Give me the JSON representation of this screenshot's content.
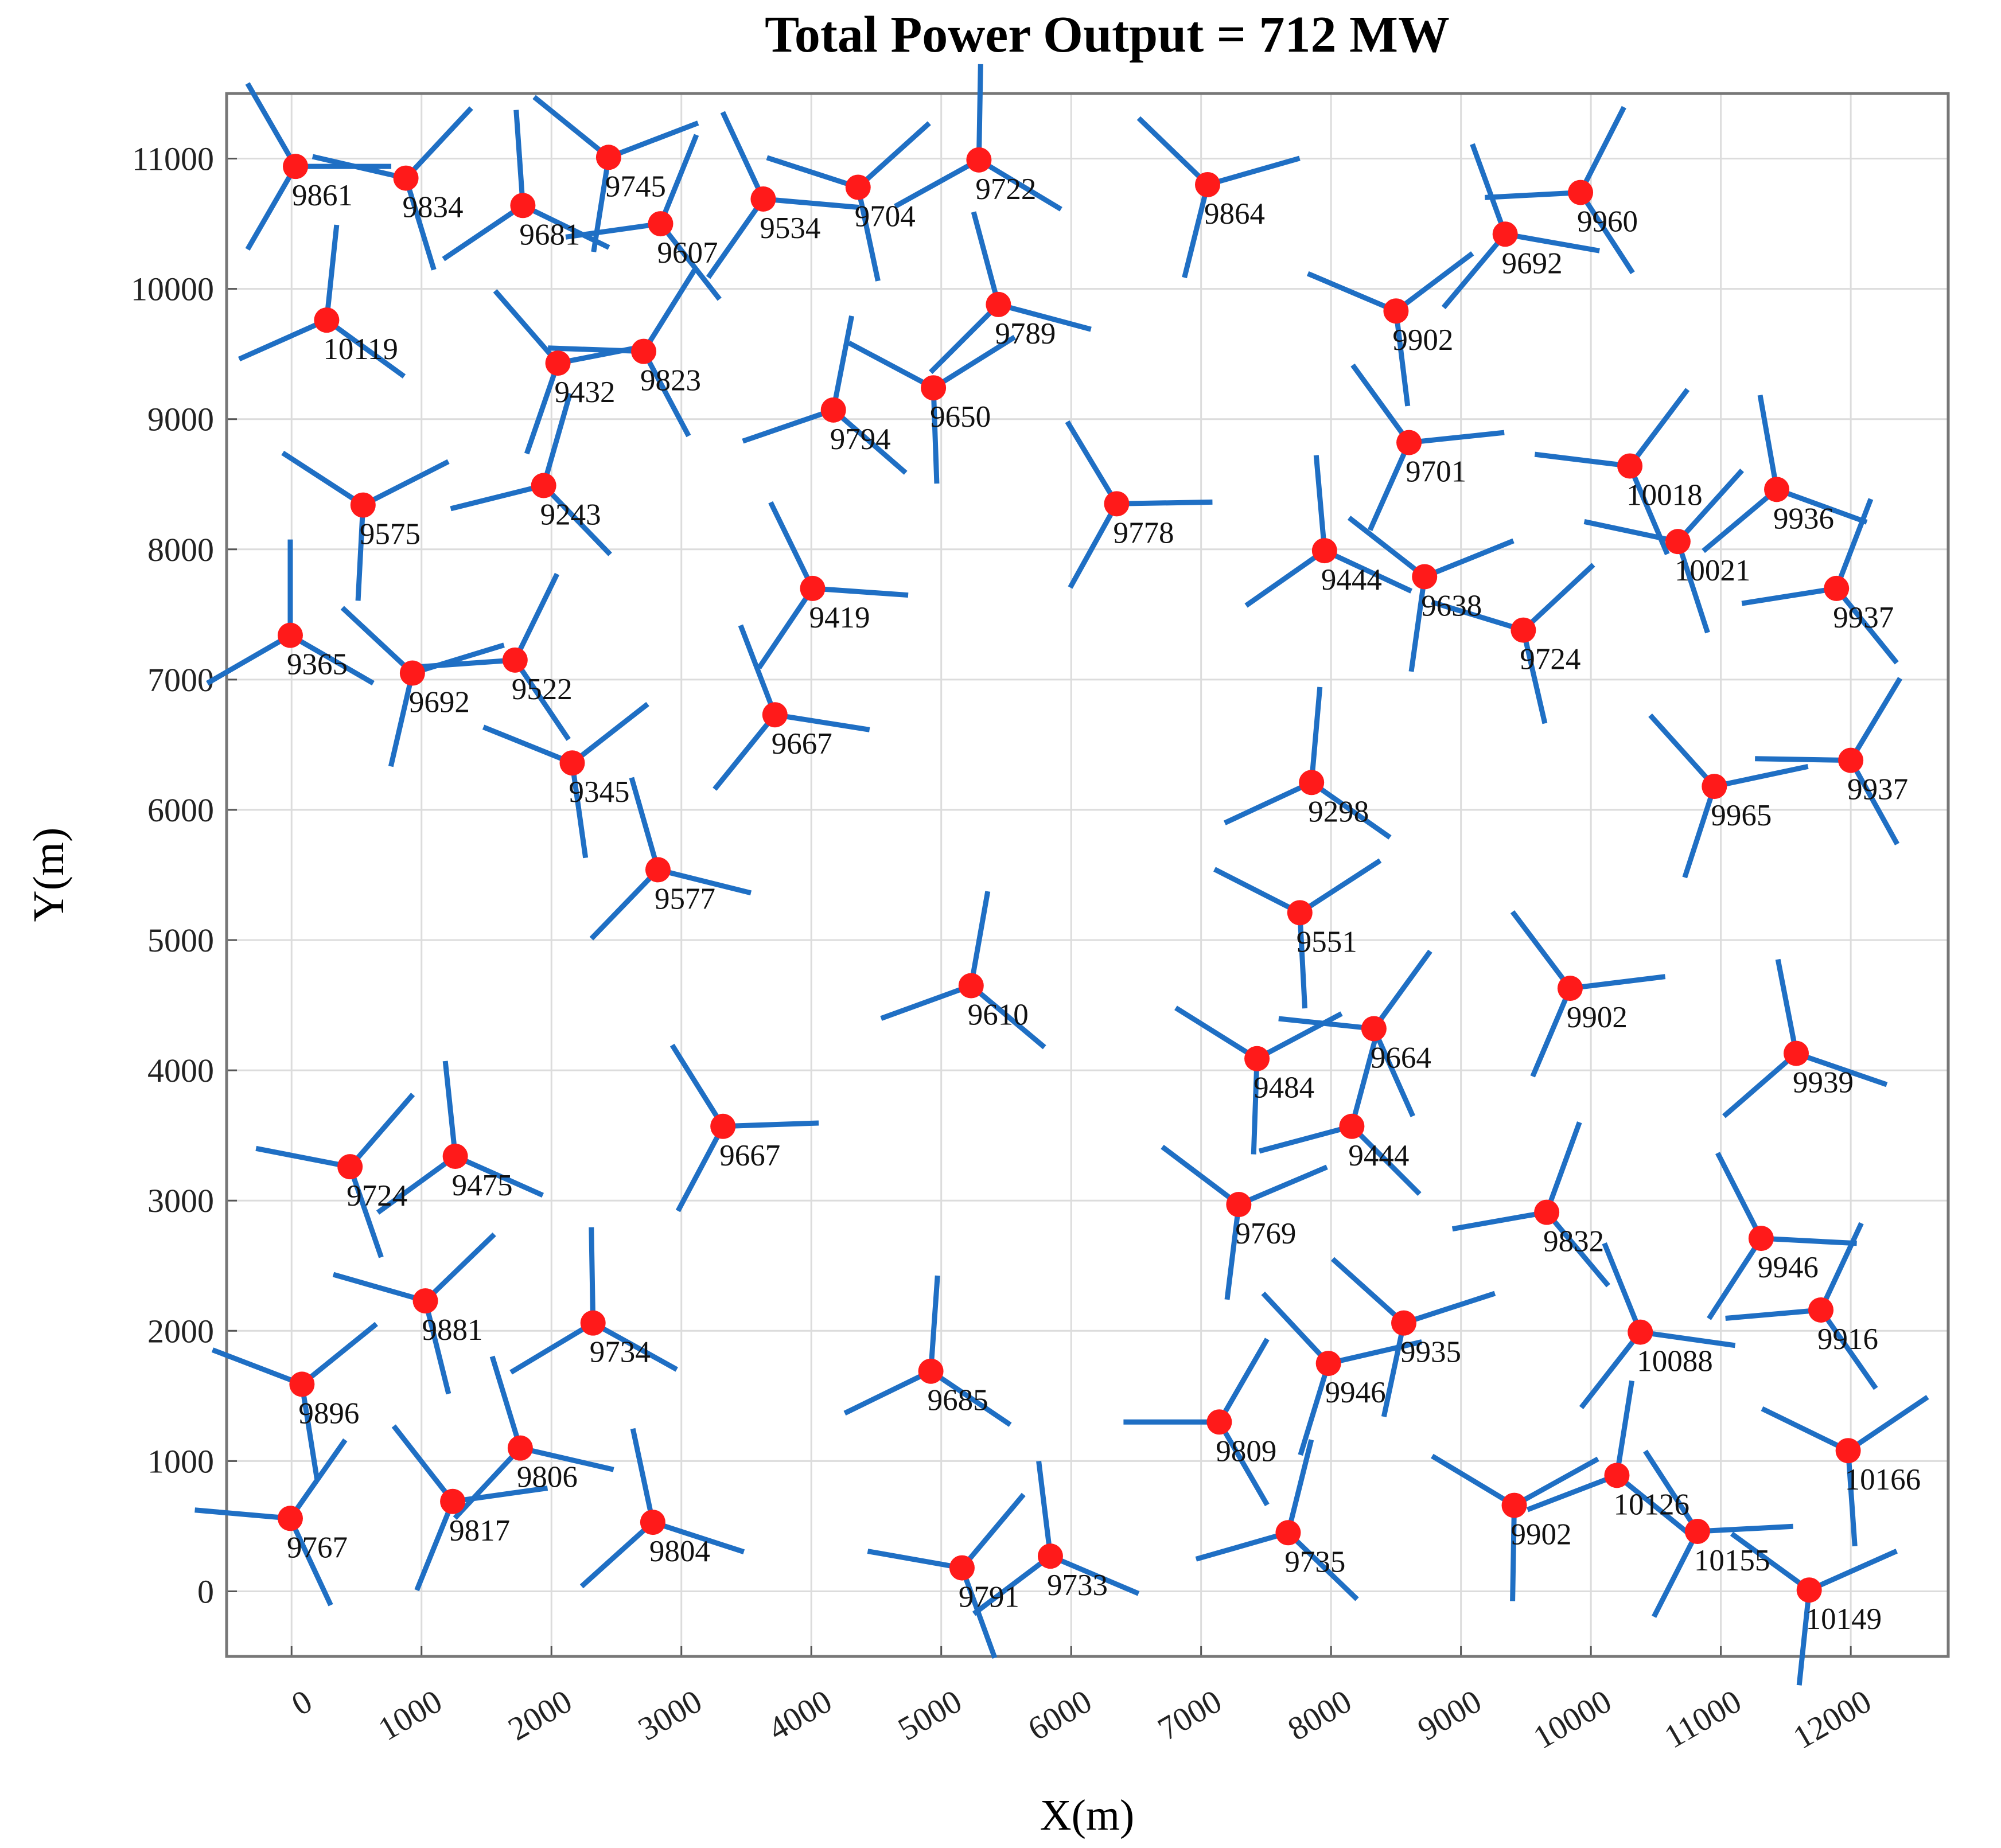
{
  "chart_data": {
    "type": "scatter",
    "title": "Total Power Output = 712 MW",
    "xlabel": "X(m)",
    "ylabel": "Y(m)",
    "xlim": [
      -500,
      12750
    ],
    "ylim": [
      -500,
      11500
    ],
    "xticks": [
      0,
      1000,
      2000,
      3000,
      4000,
      5000,
      6000,
      7000,
      8000,
      9000,
      10000,
      11000,
      12000
    ],
    "yticks": [
      0,
      1000,
      2000,
      3000,
      4000,
      5000,
      6000,
      7000,
      8000,
      9000,
      10000,
      11000
    ],
    "grid": true,
    "color": "#ff1a1a",
    "rotor_color": "#1f6fc4",
    "x": [
      30,
      880,
      1780,
      2440,
      2840,
      3630,
      4360,
      5290,
      7050,
      9920,
      9340,
      8500,
      270,
      2050,
      2710,
      5440,
      4940,
      4170,
      8600,
      10300,
      11430,
      550,
      1940,
      6350,
      10670,
      7950,
      8720,
      11890,
      4010,
      9480,
      -10,
      930,
      1720,
      3720,
      2160,
      7850,
      10950,
      12000,
      2820,
      7760,
      5230,
      9840,
      8330,
      11580,
      7430,
      8160,
      3320,
      450,
      1260,
      7290,
      9660,
      11310,
      1030,
      2320,
      8560,
      11770,
      10380,
      80,
      4920,
      7980,
      7140,
      1760,
      11980,
      10200,
      1240,
      -10,
      2780,
      9410,
      7670,
      10820,
      5160,
      5840,
      11680
    ],
    "y": [
      10940,
      10850,
      10640,
      11010,
      10500,
      10690,
      10780,
      10990,
      10800,
      10740,
      10420,
      9830,
      9760,
      9430,
      9520,
      9880,
      9240,
      9070,
      8820,
      8640,
      8460,
      8340,
      8490,
      8350,
      8060,
      7990,
      7790,
      7700,
      7700,
      7380,
      7340,
      7050,
      7150,
      6730,
      6360,
      6210,
      6180,
      6380,
      5540,
      5210,
      4650,
      4630,
      4320,
      4130,
      4090,
      3570,
      3570,
      3260,
      3340,
      2970,
      2910,
      2710,
      2230,
      2060,
      2060,
      2160,
      1990,
      1590,
      1690,
      1750,
      1300,
      1100,
      1080,
      890,
      690,
      560,
      530,
      660,
      450,
      460,
      180,
      270,
      10
    ],
    "values": [
      9861,
      9834,
      9681,
      9745,
      9607,
      9534,
      9704,
      9722,
      9864,
      9960,
      9692,
      9902,
      10119,
      9432,
      9823,
      9789,
      9650,
      9794,
      9701,
      10018,
      9936,
      9575,
      9243,
      9778,
      10021,
      9444,
      9638,
      9937,
      9419,
      9724,
      9365,
      9692,
      9522,
      9667,
      9345,
      9298,
      9965,
      9937,
      9577,
      9551,
      9610,
      9902,
      9664,
      9939,
      9484,
      9444,
      9667,
      9724,
      9475,
      9769,
      9832,
      9946,
      9881,
      9734,
      9935,
      9916,
      10088,
      9896,
      9685,
      9946,
      9809,
      9806,
      10166,
      10126,
      9817,
      9767,
      9804,
      9902,
      9735,
      10155,
      9791,
      9733,
      10149
    ]
  }
}
